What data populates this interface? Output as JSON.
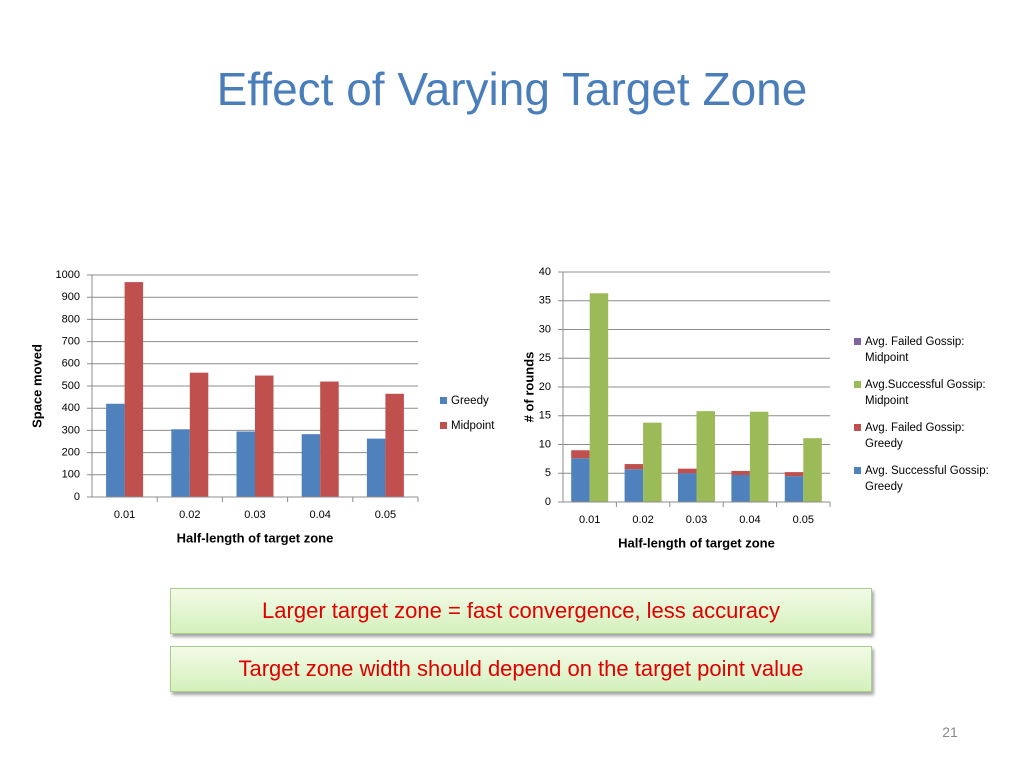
{
  "title": "Effect of Varying Target Zone",
  "chart_data": [
    {
      "type": "bar",
      "x_label": "Half-length of target zone",
      "y_label": "Space moved",
      "categories": [
        "0.01",
        "0.02",
        "0.03",
        "0.04",
        "0.05"
      ],
      "series": [
        {
          "name": "Greedy",
          "color": "#4f81bd",
          "values": [
            420,
            305,
            295,
            283,
            263
          ]
        },
        {
          "name": "Midpoint",
          "color": "#c0504d",
          "values": [
            968,
            560,
            547,
            520,
            465
          ]
        }
      ],
      "ylim": [
        0,
        1000
      ],
      "yticks": [
        0,
        100,
        200,
        300,
        400,
        500,
        600,
        700,
        800,
        900,
        1000
      ],
      "grid": true,
      "legend": "right"
    },
    {
      "type": "stacked_bar",
      "x_label": "Half-length of target zone",
      "y_label": "# of rounds",
      "categories": [
        "0.01",
        "0.02",
        "0.03",
        "0.04",
        "0.05"
      ],
      "series": [
        {
          "name": "Avg. Failed Gossip: Midpoint",
          "color": "#8064a2",
          "stack": "Midpoint",
          "values": [
            0,
            0,
            0,
            0,
            0
          ]
        },
        {
          "name": "Avg.Successful Gossip: Midpoint",
          "color": "#9bbb59",
          "stack": "Midpoint",
          "values": [
            36.3,
            13.8,
            15.8,
            15.7,
            11.1
          ]
        },
        {
          "name": "Avg. Failed Gossip: Greedy",
          "color": "#c0504d",
          "stack": "Greedy",
          "values": [
            1.4,
            0.9,
            0.8,
            0.7,
            0.7
          ]
        },
        {
          "name": "Avg. Successful Gossip: Greedy",
          "color": "#4f81bd",
          "stack": "Greedy",
          "values": [
            7.6,
            5.7,
            5.0,
            4.7,
            4.5
          ]
        }
      ],
      "ylim": [
        0,
        40
      ],
      "yticks": [
        0,
        5,
        10,
        15,
        20,
        25,
        30,
        35,
        40
      ],
      "grid": true,
      "legend": "right"
    }
  ],
  "notes": [
    "Larger target zone = fast convergence, less accuracy",
    "Target zone width should depend on the target point value"
  ],
  "page_number": "21"
}
